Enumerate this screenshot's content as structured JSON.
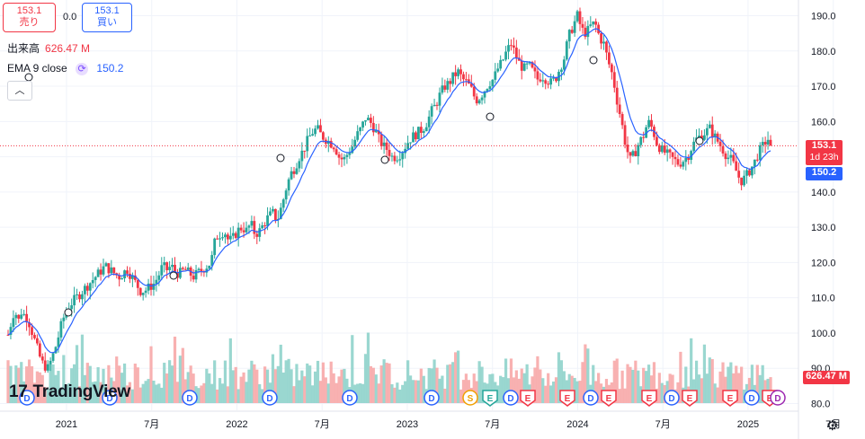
{
  "trade": {
    "sell_price": "153.1",
    "sell_label": "売り",
    "spread": "0.0",
    "buy_price": "153.1",
    "buy_label": "買い"
  },
  "legend": {
    "volume_label": "出来高",
    "volume_value": "626.47 M",
    "ema_label": "EMA 9 close",
    "ema_value": "150.2",
    "collapse_icon": "chevron-up-icon",
    "refresh_icon": "refresh-icon"
  },
  "badges": {
    "price": "153.1",
    "countdown": "1d 23h",
    "ema": "150.2",
    "volume": "626.47 M"
  },
  "logo": {
    "text": "TradingView"
  },
  "settings_icon": "gear-icon",
  "colors": {
    "up": "#26a69a",
    "down": "#f23645",
    "ema": "#2962ff",
    "up_volume": "#8fd3cb",
    "down_volume": "#f7a9a9"
  },
  "chart_data": {
    "type": "candlestick",
    "y_axis": {
      "ticks": [
        "80.0",
        "90.0",
        "100.0",
        "110.0",
        "120.0",
        "130.0",
        "140.0",
        "150.0",
        "160.0",
        "170.0",
        "180.0",
        "190.0"
      ],
      "ylim": [
        78,
        194
      ],
      "position": "right"
    },
    "x_axis": {
      "ticks": [
        {
          "label": "2021",
          "t": 0.25
        },
        {
          "label": "7月",
          "t": 6.25
        },
        {
          "label": "2022",
          "t": 12.25
        },
        {
          "label": "7月",
          "t": 18.25
        },
        {
          "label": "2023",
          "t": 24.25
        },
        {
          "label": "7月",
          "t": 30.25
        },
        {
          "label": "2024",
          "t": 36.25
        },
        {
          "label": "7月",
          "t": 42.25
        },
        {
          "label": "2025",
          "t": 48.25
        },
        {
          "label": "7月",
          "t": 54.25
        }
      ]
    },
    "price_path": [
      [
        -5,
        147
      ],
      [
        -4.5,
        142
      ],
      [
        -4,
        137
      ],
      [
        -3.5,
        134
      ],
      [
        -3,
        131
      ],
      [
        -2.5,
        125
      ],
      [
        -2,
        120
      ],
      [
        -1.5,
        121
      ],
      [
        -1,
        118
      ],
      [
        -0.5,
        116
      ],
      [
        -5.7,
        97
      ],
      [
        -5.5,
        102
      ],
      [
        -5.3,
        107
      ],
      [
        -5.15,
        103
      ],
      [
        -5,
        106
      ],
      [
        -4.7,
        104
      ],
      [
        -4.5,
        100
      ],
      [
        -4.3,
        96
      ],
      [
        -4.1,
        92
      ],
      [
        -4,
        91
      ],
      [
        -3.8,
        90
      ],
      [
        -3.6,
        93
      ],
      [
        -3.4,
        97
      ],
      [
        -3.2,
        102
      ],
      [
        -3,
        106
      ],
      [
        -2.8,
        108
      ],
      [
        -2.6,
        110
      ],
      [
        -2.4,
        112
      ],
      [
        -2.2,
        114
      ],
      [
        -2,
        117
      ],
      [
        -1.8,
        118
      ],
      [
        -1.6,
        116
      ],
      [
        -1.4,
        117
      ],
      [
        -1.2,
        119
      ],
      [
        -1,
        118
      ],
      [
        -0.8,
        117
      ],
      [
        -0.6,
        116
      ],
      [
        -0.4,
        117
      ],
      [
        -0.2,
        118
      ],
      [
        0,
        116
      ],
      [
        0.2,
        114
      ],
      [
        0.4,
        112
      ],
      [
        0.6,
        112
      ],
      [
        0.8,
        113
      ],
      [
        1,
        114
      ],
      [
        1.2,
        116
      ],
      [
        1.4,
        119
      ],
      [
        1.6,
        118
      ],
      [
        1.8,
        119
      ],
      [
        2,
        117
      ],
      [
        2.2,
        117
      ],
      [
        2.4,
        118
      ],
      [
        2.6,
        117
      ],
      [
        2.8,
        116
      ],
      [
        3,
        117
      ],
      [
        3.2,
        118
      ],
      [
        3.4,
        119
      ],
      [
        3.6,
        120
      ],
      [
        3.8,
        127
      ],
      [
        4,
        128
      ],
      [
        4.2,
        129
      ],
      [
        4.4,
        126
      ],
      [
        4.6,
        127
      ],
      [
        4.8,
        129
      ],
      [
        5,
        130
      ],
      [
        5.2,
        129
      ],
      [
        5.4,
        131
      ],
      [
        5.6,
        128
      ],
      [
        5.8,
        129
      ],
      [
        6,
        131
      ],
      [
        6.2,
        133
      ],
      [
        6.4,
        134
      ],
      [
        6.6,
        132
      ],
      [
        6.8,
        136
      ],
      [
        7,
        141
      ],
      [
        7.2,
        145
      ],
      [
        7.4,
        147
      ],
      [
        7.6,
        150
      ],
      [
        7.8,
        152
      ],
      [
        8,
        155
      ],
      [
        8.2,
        157
      ],
      [
        8.4,
        158
      ],
      [
        8.6,
        156
      ],
      [
        8.8,
        155
      ],
      [
        9,
        154
      ],
      [
        9.2,
        153
      ],
      [
        9.4,
        150
      ],
      [
        9.6,
        149
      ],
      [
        9.8,
        151
      ],
      [
        10,
        153
      ],
      [
        10.2,
        156
      ],
      [
        10.4,
        158
      ],
      [
        10.6,
        161
      ],
      [
        10.8,
        160
      ],
      [
        11,
        158
      ],
      [
        11.2,
        155
      ],
      [
        11.4,
        153
      ],
      [
        11.6,
        152
      ],
      [
        11.8,
        150
      ],
      [
        12,
        150
      ],
      [
        12.2,
        151
      ],
      [
        12.4,
        153
      ],
      [
        12.6,
        155
      ],
      [
        12.8,
        156
      ],
      [
        13,
        157
      ],
      [
        13.2,
        158
      ],
      [
        13.4,
        160
      ],
      [
        13.6,
        163
      ],
      [
        13.8,
        165
      ],
      [
        14,
        168
      ],
      [
        14.2,
        170
      ],
      [
        14.4,
        171
      ],
      [
        14.6,
        173
      ],
      [
        14.8,
        174
      ],
      [
        15,
        172
      ],
      [
        15.2,
        171
      ],
      [
        15.4,
        169
      ],
      [
        15.6,
        166
      ],
      [
        15.8,
        167
      ],
      [
        16,
        169
      ],
      [
        16.2,
        171
      ],
      [
        16.4,
        172
      ],
      [
        16.6,
        175
      ],
      [
        16.8,
        177
      ],
      [
        17,
        180
      ],
      [
        17.2,
        182
      ],
      [
        17.4,
        179
      ],
      [
        17.6,
        176
      ],
      [
        17.8,
        175
      ],
      [
        18,
        176
      ],
      [
        18.2,
        174
      ],
      [
        18.4,
        172
      ],
      [
        18.6,
        173
      ],
      [
        18.8,
        172
      ],
      [
        19,
        171
      ],
      [
        19.2,
        172
      ],
      [
        19.4,
        175
      ],
      [
        19.6,
        178
      ],
      [
        19.8,
        184
      ],
      [
        20,
        187
      ],
      [
        20.2,
        190
      ],
      [
        20.4,
        186
      ],
      [
        20.6,
        185
      ],
      [
        20.8,
        187
      ],
      [
        21,
        188
      ],
      [
        21.2,
        184
      ],
      [
        21.4,
        182
      ],
      [
        21.6,
        177
      ],
      [
        21.8,
        173
      ],
      [
        22,
        166
      ],
      [
        22.2,
        160
      ],
      [
        22.4,
        153
      ],
      [
        22.6,
        149
      ],
      [
        22.8,
        151
      ],
      [
        23,
        154
      ],
      [
        23.2,
        156
      ],
      [
        23.4,
        160
      ],
      [
        23.6,
        158
      ],
      [
        23.8,
        154
      ],
      [
        24,
        152
      ],
      [
        24.2,
        151
      ],
      [
        24.4,
        150
      ],
      [
        24.6,
        149
      ],
      [
        24.8,
        148
      ],
      [
        25,
        149
      ],
      [
        25.2,
        150
      ],
      [
        25.4,
        153
      ],
      [
        25.6,
        155
      ],
      [
        25.8,
        156
      ],
      [
        26,
        157
      ],
      [
        26.2,
        158
      ],
      [
        26.4,
        156
      ],
      [
        26.6,
        154
      ],
      [
        26.8,
        152
      ],
      [
        27,
        150
      ],
      [
        27.2,
        149
      ],
      [
        27.4,
        146
      ],
      [
        27.6,
        143
      ],
      [
        27.8,
        144
      ],
      [
        28,
        146
      ],
      [
        28.2,
        148
      ],
      [
        28.4,
        151
      ],
      [
        28.6,
        153
      ],
      [
        28.8,
        155
      ],
      [
        29,
        155
      ]
    ],
    "volume_levels": "estimated",
    "ema_series": {
      "name": "EMA 9 close",
      "period": 9
    },
    "event_markers": {
      "row_d": [
        "D",
        "D",
        "D",
        "D",
        "D",
        "D",
        "D",
        "D",
        "D",
        "D",
        "D",
        "D",
        "D"
      ],
      "row_mixed": [
        "S",
        "E",
        "D",
        "E",
        "E",
        "D",
        "E",
        "E",
        "D",
        "E",
        "E",
        "D",
        "E"
      ]
    },
    "grid": true
  }
}
